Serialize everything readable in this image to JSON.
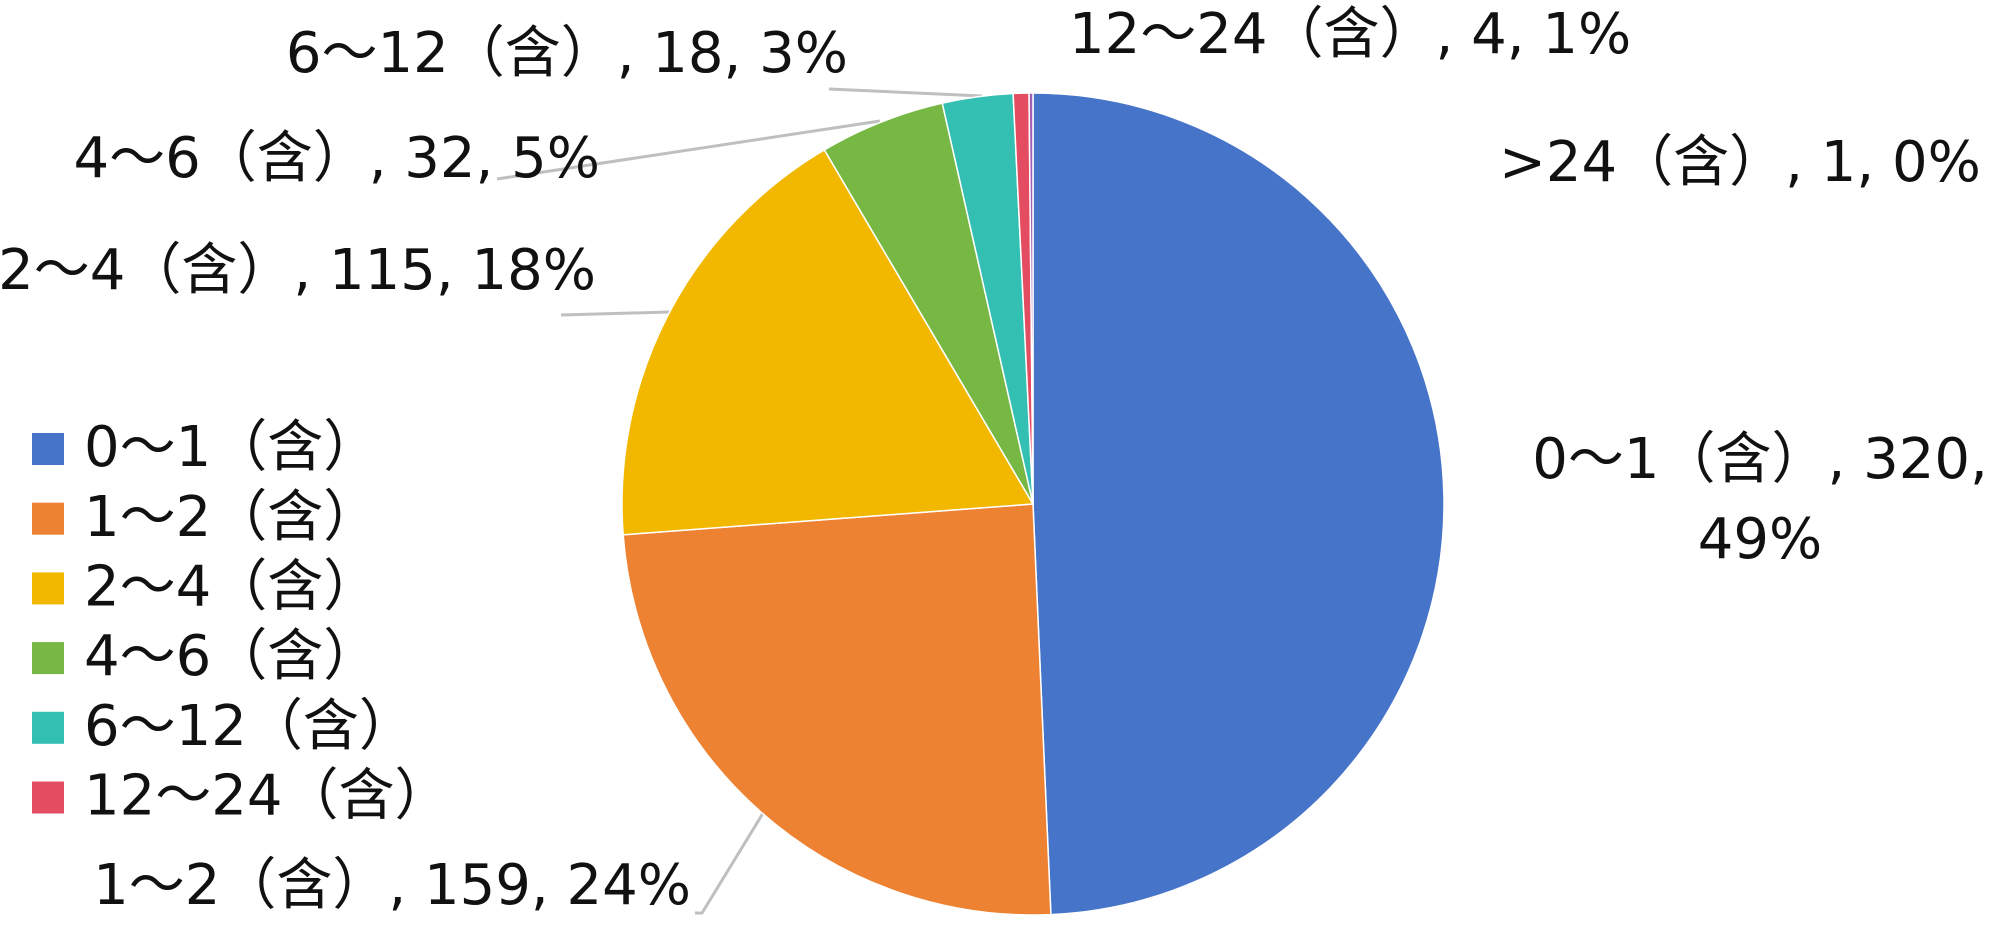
{
  "chart_data": {
    "type": "pie",
    "categories": [
      "0～1（含）",
      "1～2（含）",
      "2～4（含）",
      "4～6（含）",
      "6～12（含）",
      "12～24（含）",
      ">24（含）"
    ],
    "values": [
      320,
      159,
      115,
      32,
      18,
      4,
      1
    ],
    "data_labels": [
      "0～1（含）, 320, 49%",
      "1～2（含）, 159, 24%",
      "2～4（含）, 115, 18%",
      "4～6（含）, 32, 5%",
      "6～12（含）, 18, 3%",
      "12～24（含）, 4, 1%",
      ">24（含）, 1, 0%"
    ],
    "colors": [
      "#4674c9",
      "#ee8233",
      "#f2b800",
      "#76b843",
      "#33c0b2",
      "#e44c62",
      "#9e5fb8"
    ],
    "legend": [
      "0～1（含）",
      "1～2（含）",
      "2～4（含）",
      "4～6（含）",
      "6～12（含）",
      "12～24（含）"
    ],
    "legend_position": "left"
  }
}
